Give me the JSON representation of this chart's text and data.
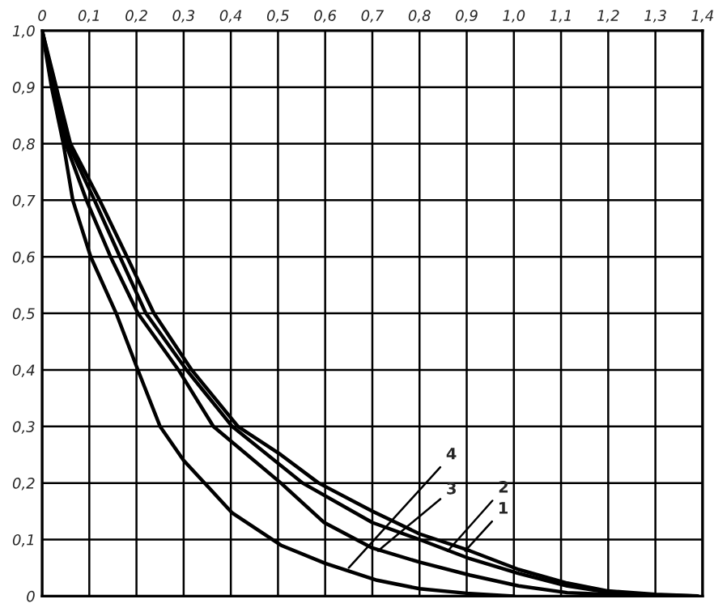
{
  "chart_data": {
    "type": "line",
    "series": [
      {
        "color": "#000000",
        "x": [
          0,
          0.06,
          0.122,
          0.18,
          0.237,
          0.317,
          0.415,
          0.506,
          0.586,
          0.7,
          0.8,
          0.907,
          1.01,
          1.113,
          1.2,
          1.3,
          1.39
        ],
        "values": [
          1.0,
          0.8,
          0.7,
          0.6,
          0.5,
          0.4,
          0.3,
          0.25,
          0.2,
          0.15,
          0.11,
          0.08,
          0.047,
          0.023,
          0.009,
          0.003,
          0.0
        ]
      },
      {
        "color": "#000000",
        "x": [
          0,
          0.055,
          0.111,
          0.165,
          0.22,
          0.306,
          0.403,
          0.552,
          0.7,
          0.8,
          0.907,
          1.01,
          1.113,
          1.2,
          1.3,
          1.38
        ],
        "values": [
          1.0,
          0.8,
          0.7,
          0.6,
          0.5,
          0.4,
          0.3,
          0.2,
          0.13,
          0.1,
          0.066,
          0.04,
          0.018,
          0.007,
          0.002,
          0.0
        ]
      },
      {
        "color": "#000000",
        "x": [
          0,
          0.05,
          0.094,
          0.145,
          0.203,
          0.289,
          0.363,
          0.506,
          0.598,
          0.7,
          0.8,
          0.907,
          1.01,
          1.113,
          1.2,
          1.3,
          1.36
        ],
        "values": [
          1.0,
          0.8,
          0.7,
          0.6,
          0.5,
          0.4,
          0.3,
          0.2,
          0.13,
          0.085,
          0.06,
          0.037,
          0.018,
          0.006,
          0.003,
          0.001,
          0.0
        ]
      },
      {
        "color": "#000000",
        "x": [
          0,
          0.02,
          0.045,
          0.065,
          0.103,
          0.157,
          0.203,
          0.25,
          0.3,
          0.403,
          0.506,
          0.6,
          0.71,
          0.8,
          0.9,
          1.0
        ],
        "values": [
          1.0,
          0.9,
          0.8,
          0.7,
          0.6,
          0.5,
          0.4,
          0.3,
          0.24,
          0.147,
          0.09,
          0.058,
          0.028,
          0.013,
          0.005,
          0.0
        ]
      }
    ],
    "annotations": [
      {
        "text": "4",
        "x": 0.65,
        "y": 0.05
      },
      {
        "text": "3",
        "x": 0.712,
        "y": 0.08
      },
      {
        "text": "2",
        "x": 0.86,
        "y": 0.08
      },
      {
        "text": "1",
        "x": 0.897,
        "y": 0.08
      }
    ],
    "xlim": [
      0,
      1.4
    ],
    "xticks": [
      0,
      {
        "value": 0.1,
        "label": "0,1"
      },
      {
        "value": 0.2,
        "label": "0,2"
      },
      {
        "value": 0.3,
        "label": "0,3"
      },
      {
        "value": 0.4,
        "label": "0,4"
      },
      {
        "value": 0.5,
        "label": "0,5"
      },
      {
        "value": 0.6,
        "label": "0,6"
      },
      {
        "value": 0.7,
        "label": "0,7"
      },
      {
        "value": 0.8,
        "label": "0,8"
      },
      {
        "value": 0.9,
        "label": "0,9"
      },
      {
        "value": 1.0,
        "label": "1,0"
      },
      {
        "value": 1.1,
        "label": "1,1"
      },
      {
        "value": 1.2,
        "label": "1,2"
      },
      {
        "value": 1.3,
        "label": "1,3"
      },
      {
        "value": 1.4,
        "label": "1,4"
      }
    ],
    "ylim": [
      0,
      1.0
    ],
    "yticks": [
      0,
      {
        "value": 0.1,
        "label": "0,1"
      },
      {
        "value": 0.2,
        "label": "0,2"
      },
      {
        "value": 0.3,
        "label": "0,3"
      },
      {
        "value": 0.4,
        "label": "0,4"
      },
      {
        "value": 0.5,
        "label": "0,5"
      },
      {
        "value": 0.6,
        "label": "0,6"
      },
      {
        "value": 0.7,
        "label": "0,7"
      },
      {
        "value": 0.8,
        "label": "0,8"
      },
      {
        "value": 0.9,
        "label": "0,9"
      },
      {
        "value": 1.0,
        "label": "1,0"
      }
    ],
    "grid": true,
    "line_style": "solid",
    "marker": "none",
    "legend": false
  }
}
